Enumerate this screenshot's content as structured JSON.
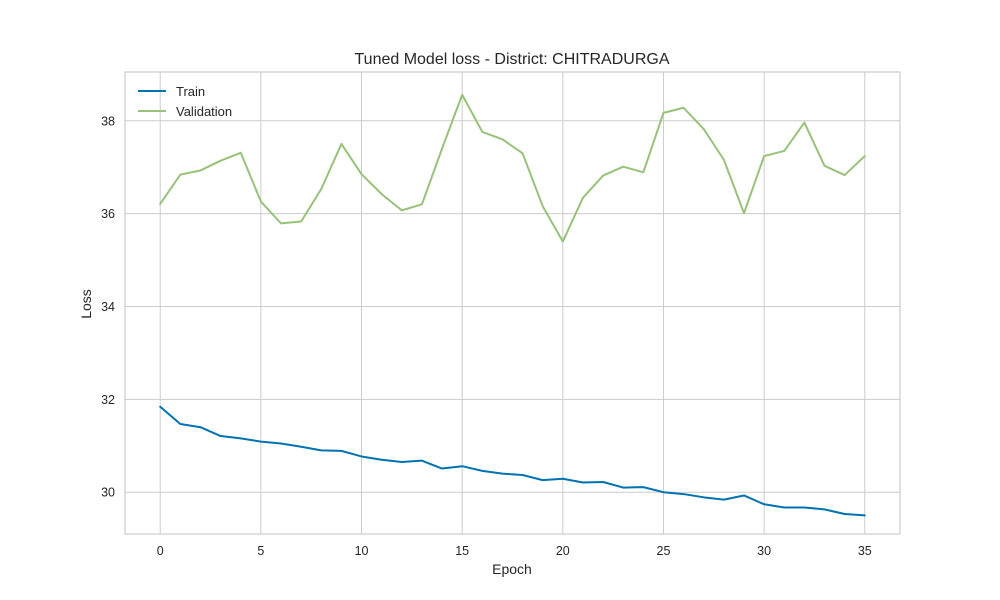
{
  "chart_data": {
    "type": "line",
    "title": "Tuned Model loss - District: CHITRADURGA",
    "xlabel": "Epoch",
    "ylabel": "Loss",
    "xlim": [
      -1.75,
      36.75
    ],
    "ylim": [
      29.1,
      39.05
    ],
    "xticks": [
      0,
      5,
      10,
      15,
      20,
      25,
      30,
      35
    ],
    "yticks": [
      30,
      32,
      34,
      36,
      38
    ],
    "grid": true,
    "legend_position": "top-left",
    "x": [
      0,
      1,
      2,
      3,
      4,
      5,
      6,
      7,
      8,
      9,
      10,
      11,
      12,
      13,
      14,
      15,
      16,
      17,
      18,
      19,
      20,
      21,
      22,
      23,
      24,
      25,
      26,
      27,
      28,
      29,
      30,
      31,
      32,
      33,
      34,
      35
    ],
    "series": [
      {
        "name": "Train",
        "color": "#0072b2",
        "values": [
          31.84,
          31.47,
          31.4,
          31.21,
          31.16,
          31.09,
          31.05,
          30.98,
          30.9,
          30.89,
          30.77,
          30.7,
          30.65,
          30.68,
          30.51,
          30.56,
          30.46,
          30.4,
          30.37,
          30.26,
          30.29,
          30.21,
          30.22,
          30.1,
          30.11,
          30.0,
          29.96,
          29.89,
          29.84,
          29.93,
          29.74,
          29.67,
          29.67,
          29.63,
          29.53,
          29.5
        ]
      },
      {
        "name": "Validation",
        "color": "#98c17a",
        "values": [
          36.21,
          36.84,
          36.93,
          37.14,
          37.31,
          36.26,
          35.79,
          35.83,
          36.53,
          37.5,
          36.85,
          36.42,
          36.07,
          36.2,
          37.4,
          38.56,
          37.76,
          37.6,
          37.3,
          36.16,
          35.4,
          36.34,
          36.82,
          37.01,
          36.89,
          38.17,
          38.28,
          37.82,
          37.16,
          36.01,
          37.24,
          37.35,
          37.96,
          37.03,
          36.83,
          37.24
        ]
      }
    ]
  }
}
